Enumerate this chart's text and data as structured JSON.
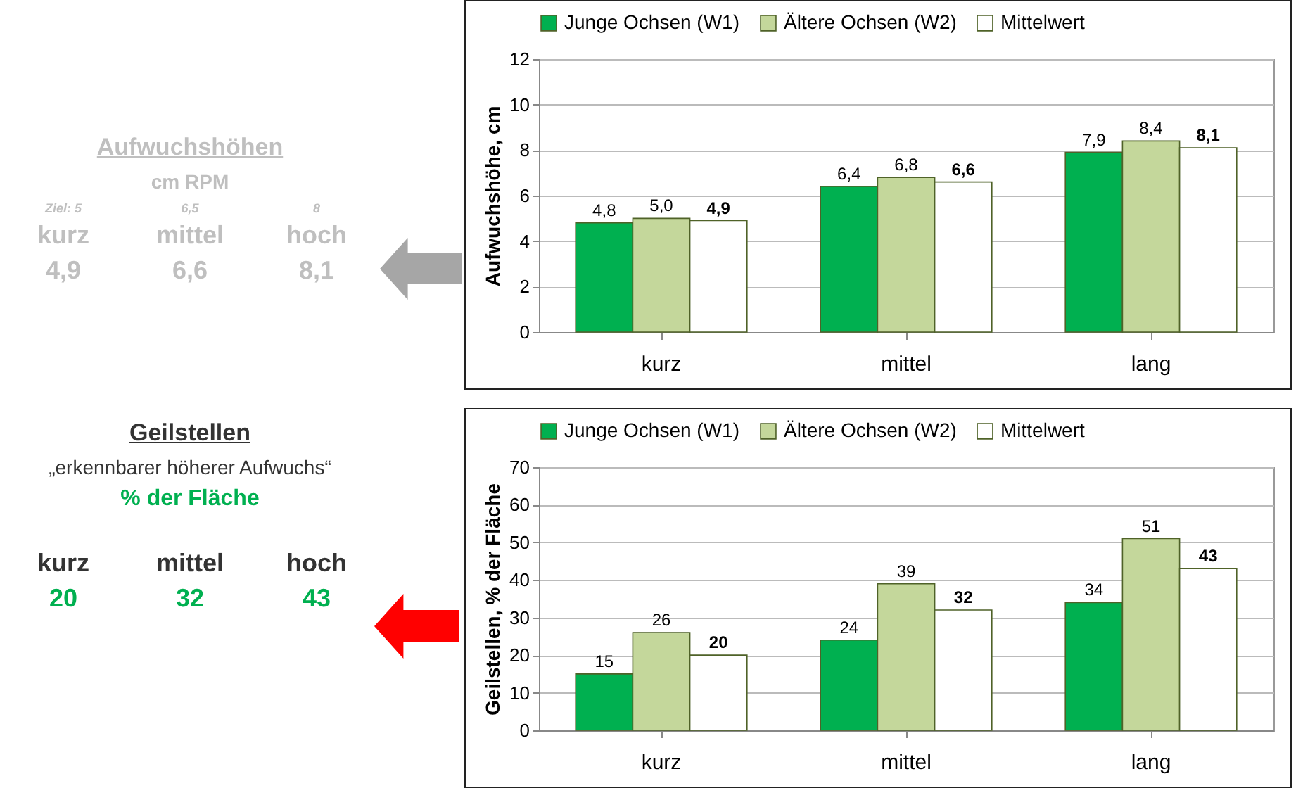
{
  "chart_data": [
    {
      "type": "other",
      "title": "Aufwuchshöhen",
      "subtitle": "cm RPM",
      "annotations": [
        "Ziel: 5",
        "6,5",
        "8",
        "kurz",
        "mittel",
        "hoch",
        "4,9",
        "6,6",
        "8,1"
      ]
    },
    {
      "type": "bar",
      "ylabel": "Aufwuchshöhe, cm",
      "categories": [
        "kurz",
        "mittel",
        "lang"
      ],
      "ylim": [
        0,
        12
      ],
      "yticks": [
        0,
        2,
        4,
        6,
        8,
        10,
        12
      ],
      "grid": "y",
      "legend": "top",
      "series": [
        {
          "name": "Junge Ochsen (W1)",
          "color": "#00b050",
          "values": [
            4.8,
            6.4,
            7.9
          ],
          "value_labels": [
            "4,8",
            "6,4",
            "7,9"
          ]
        },
        {
          "name": "Ältere Ochsen (W2)",
          "color": "#c4d79b",
          "values": [
            5.0,
            6.8,
            8.4
          ],
          "value_labels": [
            "5,0",
            "6,8",
            "8,4"
          ]
        },
        {
          "name": "Mittelwert",
          "color": "#ffffff",
          "values": [
            4.9,
            6.6,
            8.1
          ],
          "value_labels": [
            "4,9",
            "6,6",
            "8,1"
          ]
        }
      ]
    },
    {
      "type": "other",
      "title": "Geilstellen",
      "subtitle": "„erkennbarer höherer Aufwuchs“",
      "annotations": [
        "% der Fläche",
        "kurz",
        "mittel",
        "hoch",
        "20",
        "32",
        "43"
      ]
    },
    {
      "type": "bar",
      "ylabel": "Geilstellen, % der Fläche",
      "categories": [
        "kurz",
        "mittel",
        "lang"
      ],
      "ylim": [
        0,
        70
      ],
      "yticks": [
        0,
        10,
        20,
        30,
        40,
        50,
        60,
        70
      ],
      "grid": "y",
      "legend": "top",
      "series": [
        {
          "name": "Junge Ochsen (W1)",
          "color": "#00b050",
          "values": [
            15,
            24,
            34
          ],
          "value_labels": [
            "15",
            "24",
            "34"
          ]
        },
        {
          "name": "Ältere Ochsen (W2)",
          "color": "#c4d79b",
          "values": [
            26,
            39,
            51
          ],
          "value_labels": [
            "26",
            "39",
            "51"
          ]
        },
        {
          "name": "Mittelwert",
          "color": "#ffffff",
          "values": [
            20,
            32,
            43
          ],
          "value_labels": [
            "20",
            "32",
            "43"
          ]
        }
      ]
    }
  ]
}
